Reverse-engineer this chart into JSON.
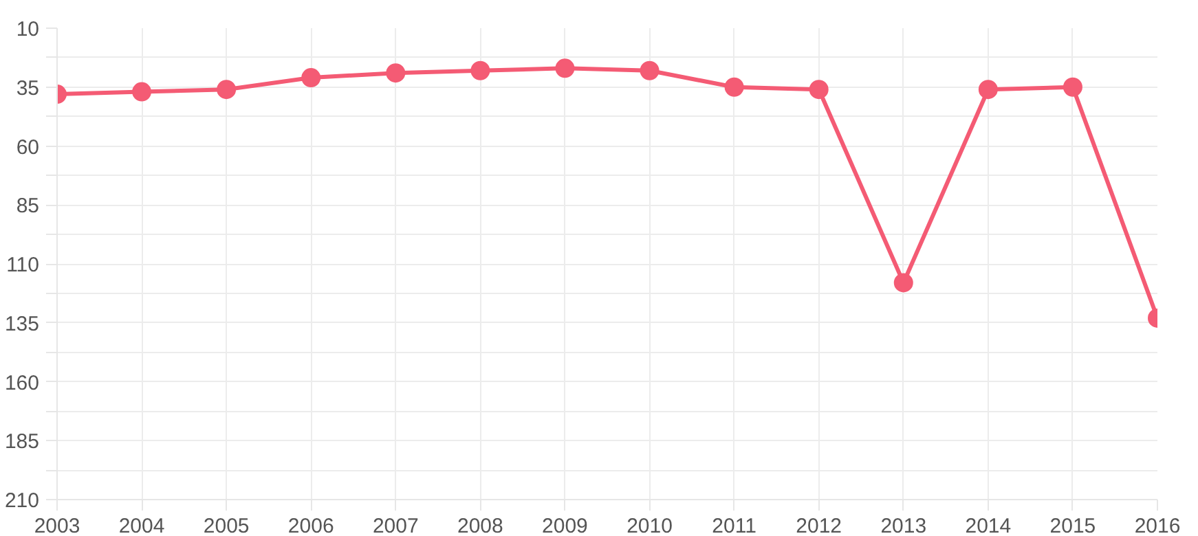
{
  "chart_data": {
    "type": "line",
    "x": [
      2003,
      2004,
      2005,
      2006,
      2007,
      2008,
      2009,
      2010,
      2011,
      2012,
      2013,
      2014,
      2015,
      2016
    ],
    "series": [
      {
        "color": "#f45b74",
        "values": [
          38,
          37,
          36,
          31,
          29,
          28,
          27,
          28,
          35,
          36,
          118,
          36,
          35,
          133
        ]
      }
    ],
    "xlim": [
      2003,
      2016
    ],
    "xticks": [
      2003,
      2004,
      2005,
      2006,
      2007,
      2008,
      2009,
      2010,
      2011,
      2012,
      2013,
      2014,
      2015,
      2016
    ],
    "ylim": [
      210,
      10
    ],
    "yticks": [
      10,
      {
        "value": 22.5,
        "label": null
      },
      35,
      {
        "value": 47.5,
        "label": null
      },
      60,
      {
        "value": 72.5,
        "label": null
      },
      85,
      {
        "value": 97.5,
        "label": null
      },
      110,
      {
        "value": 122.5,
        "label": null
      },
      135,
      {
        "value": 147.5,
        "label": null
      },
      160,
      {
        "value": 172.5,
        "label": null
      },
      185,
      {
        "value": 197.5,
        "label": null
      },
      210
    ],
    "grid": true,
    "marker": "circle",
    "line_style": "solid"
  }
}
